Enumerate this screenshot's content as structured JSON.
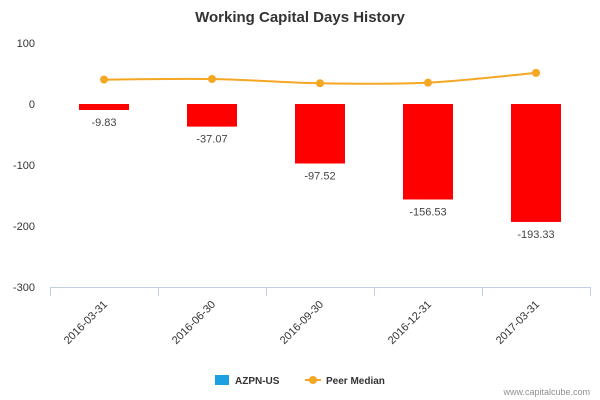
{
  "chart_data": {
    "type": "bar",
    "title": "Working Capital Days History",
    "xlabel": "",
    "ylabel": "",
    "categories": [
      "2016-03-31",
      "2016-06-30",
      "2016-09-30",
      "2016-12-31",
      "2017-03-31"
    ],
    "series": [
      {
        "name": "AZPN-US",
        "type": "bar",
        "values": [
          -9.83,
          -37.07,
          -97.52,
          -156.53,
          -193.33
        ],
        "data_labels": [
          "-9.83",
          "-37.07",
          "-97.52",
          "-156.53",
          "-193.33"
        ]
      },
      {
        "name": "Peer Median",
        "type": "line",
        "values": [
          40,
          41,
          34,
          35,
          51
        ]
      }
    ],
    "ylim": [
      -300,
      100
    ],
    "yticks": [
      "100",
      "0",
      "-100",
      "-200",
      "-300"
    ],
    "ytick_values": [
      100,
      0,
      -100,
      -200,
      -300
    ],
    "grid": false,
    "legend_position": "bottom",
    "credit": "www.capitalcube.com",
    "colors": {
      "bar": "#ff0000",
      "line": "#f5a623",
      "legend_bar": "#1ba1e2",
      "axis": "#c0d0e0"
    }
  }
}
